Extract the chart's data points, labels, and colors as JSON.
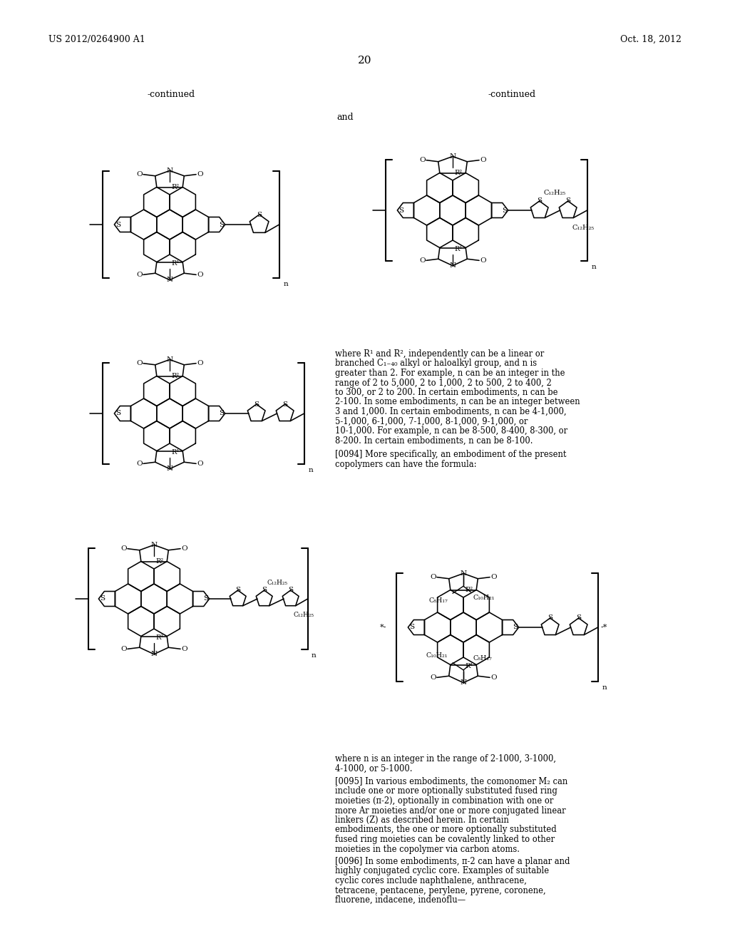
{
  "page_number": "20",
  "patent_number": "US 2012/0264900 A1",
  "patent_date": "Oct. 18, 2012",
  "background_color": "#ffffff",
  "continued_left": "-continued",
  "continued_right": "-continued",
  "and_label": "and",
  "where_r1r2_text": "where R¹ and R², independently can be a linear or branched C₁₋₄₀ alkyl or haloalkyl group, and n is greater than 2. For example, n can be an integer in the range of 2 to 5,000, 2 to 1,000, 2 to 500, 2 to 400, 2 to 300, or 2 to 200. In certain embodiments, n can be 2-100. In some embodiments, n can be an integer between 3 and 1,000. In certain embodiments, n can be 4-1,000, 5-1,000, 6-1,000, 7-1,000, 8-1,000, 9-1,000, or 10-1,000. For example, n can be 8-500, 8-400, 8-300, or 8-200. In certain embodiments, n can be 8-100.",
  "para_0094": "[0094]   More specifically, an embodiment of the present copolymers can have the formula:",
  "range_text": "where n is an integer in the range of 2-1000, 3-1000, 4-1000, or 5-1000.",
  "para_0095": "[0095]   In various embodiments, the comonomer M₂ can include one or more optionally substituted fused ring moieties (π-2), optionally in combination with one or more Ar moieties and/or one or more conjugated linear linkers (Z) as described herein. In certain embodiments, the one or more optionally substituted fused ring moieties can be covalently linked to other moieties in the copolymer via carbon atoms.",
  "para_0096": "[0096]   In some embodiments, π-2 can have a planar and highly conjugated cyclic core. Examples of suitable cyclic cores include naphthalene, anthracene, tetracene, pentacene, perylene, pyrene, coronene, fluorene, indacene, indenoflu—"
}
